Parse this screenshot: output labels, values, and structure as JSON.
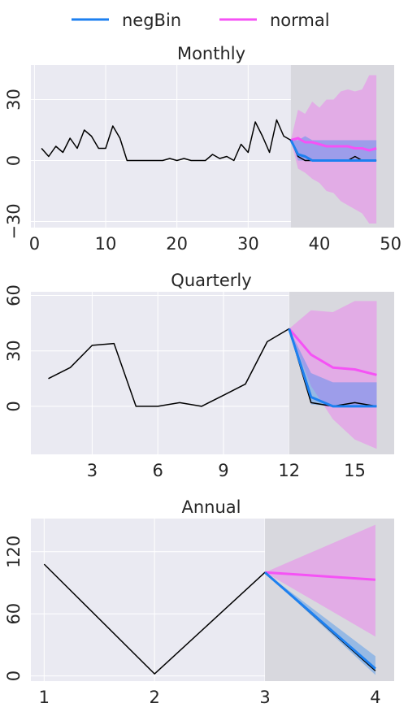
{
  "legend": [
    {
      "label": "negBin",
      "color": "#1d80f0"
    },
    {
      "label": "normal",
      "color": "#f552f5"
    }
  ],
  "chart_data": [
    {
      "type": "line",
      "title": "Monthly",
      "xlim": [
        -0.5,
        50.5
      ],
      "ylim": [
        -33,
        47
      ],
      "xticks": [
        0,
        10,
        20,
        30,
        40,
        50
      ],
      "yticks": [
        -30,
        0,
        30
      ],
      "forecast_start": 36,
      "forecast_end": 50.5,
      "actual": {
        "x": [
          1,
          2,
          3,
          4,
          5,
          6,
          7,
          8,
          9,
          10,
          11,
          12,
          13,
          14,
          15,
          16,
          17,
          18,
          19,
          20,
          21,
          22,
          23,
          24,
          25,
          26,
          27,
          28,
          29,
          30,
          31,
          32,
          33,
          34,
          35,
          36,
          37,
          38,
          39,
          40,
          41,
          42,
          43,
          44,
          45,
          46,
          47,
          48
        ],
        "y": [
          6,
          2,
          7,
          4,
          11,
          6,
          15,
          12,
          6,
          6,
          17,
          11,
          0,
          0,
          0,
          0,
          0,
          0,
          1,
          0,
          1,
          0,
          0,
          0,
          3,
          1,
          2,
          0,
          8,
          4,
          19,
          12,
          4,
          20,
          12,
          10,
          2,
          0,
          0,
          0,
          0,
          0,
          0,
          0,
          2,
          0,
          0,
          0
        ]
      },
      "negBin": {
        "x": [
          36,
          37,
          38,
          39,
          40,
          41,
          42,
          43,
          44,
          45,
          46,
          47,
          48
        ],
        "mean": [
          10,
          3,
          2,
          0,
          0,
          0,
          0,
          0,
          0,
          0,
          0,
          0,
          0
        ],
        "lower": [
          10,
          0,
          0,
          0,
          0,
          0,
          0,
          0,
          0,
          0,
          0,
          0,
          0
        ],
        "upper": [
          10,
          10,
          12,
          10,
          10,
          10,
          10,
          10,
          10,
          10,
          10,
          10,
          10
        ]
      },
      "normal": {
        "x": [
          36,
          37,
          38,
          39,
          40,
          41,
          42,
          43,
          44,
          45,
          46,
          47,
          48
        ],
        "mean": [
          10,
          11,
          9,
          9,
          8,
          7,
          7,
          7,
          7,
          6,
          6,
          5,
          6
        ],
        "lower": [
          10,
          -4,
          -6,
          -9,
          -11,
          -15,
          -16,
          -20,
          -22,
          -24,
          -26,
          -31,
          -31
        ],
        "upper": [
          10,
          25,
          23,
          29,
          26,
          30,
          30,
          34,
          35,
          34,
          35,
          42,
          42
        ]
      }
    },
    {
      "type": "line",
      "title": "Quarterly",
      "xlim": [
        0.2,
        16.8
      ],
      "ylim": [
        -26,
        62
      ],
      "xticks": [
        3,
        6,
        9,
        12,
        15
      ],
      "yticks": [
        0,
        30,
        60
      ],
      "forecast_start": 12,
      "forecast_end": 16.8,
      "actual": {
        "x": [
          1,
          2,
          3,
          4,
          5,
          6,
          7,
          8,
          9,
          10,
          11,
          12,
          13,
          14,
          15,
          16
        ],
        "y": [
          15,
          21,
          33,
          34,
          0,
          0,
          2,
          0,
          6,
          12,
          35,
          42,
          2,
          0,
          2,
          0
        ]
      },
      "negBin": {
        "x": [
          12,
          13,
          14,
          15,
          16
        ],
        "mean": [
          42,
          5,
          0,
          0,
          0
        ],
        "lower": [
          42,
          1,
          0,
          0,
          0
        ],
        "upper": [
          42,
          18,
          13,
          13,
          13
        ]
      },
      "normal": {
        "x": [
          12,
          13,
          14,
          15,
          16
        ],
        "mean": [
          42,
          28,
          21,
          20,
          17
        ],
        "lower": [
          42,
          11,
          -7,
          -18,
          -23
        ],
        "upper": [
          42,
          52,
          51,
          57,
          57
        ]
      }
    },
    {
      "type": "line",
      "title": "Annual",
      "xlim": [
        0.88,
        4.17
      ],
      "ylim": [
        -5,
        152
      ],
      "xticks": [
        1,
        2,
        3,
        4
      ],
      "yticks": [
        0,
        60,
        120
      ],
      "forecast_start": 3,
      "forecast_end": 4.17,
      "actual": {
        "x": [
          1,
          2,
          3,
          4
        ],
        "y": [
          108,
          2,
          100,
          5
        ]
      },
      "negBin": {
        "x": [
          3,
          4
        ],
        "mean": [
          100,
          7
        ],
        "lower": [
          100,
          1
        ],
        "upper": [
          100,
          19
        ]
      },
      "normal": {
        "x": [
          3,
          4
        ],
        "mean": [
          100,
          93
        ],
        "lower": [
          100,
          38
        ],
        "upper": [
          100,
          146
        ]
      }
    }
  ]
}
